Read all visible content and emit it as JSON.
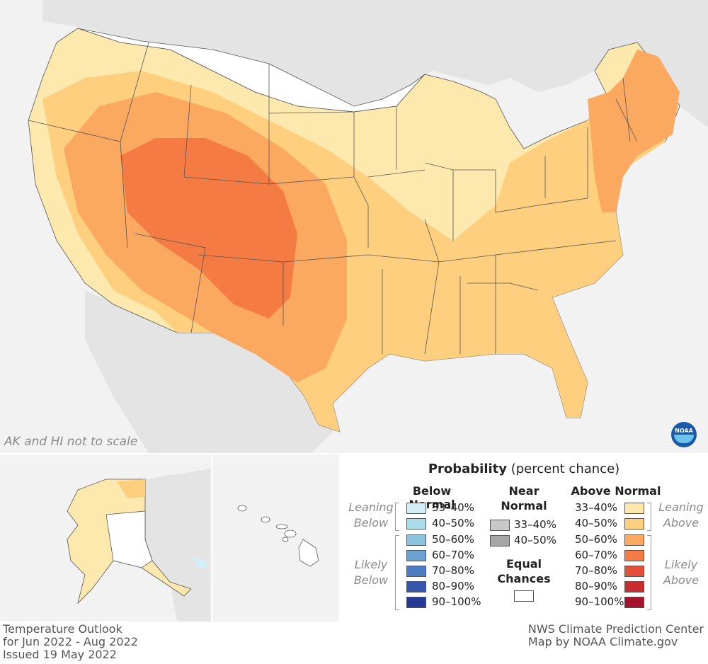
{
  "note": "AK and HI not to scale",
  "footer": {
    "line1": "Temperature Outlook",
    "line2": "for Jun 2022 - Aug 2022",
    "line3": "Issued 19 May 2022",
    "credit1": "NWS Climate Prediction Center",
    "credit2": "Map by NOAA Climate.gov"
  },
  "logo": "NOAA",
  "legend": {
    "title_bold": "Probability",
    "title_rest": " (percent chance)",
    "below_header": "Below Normal",
    "near_header_1": "Near",
    "near_header_2": "Normal",
    "above_header": "Above Normal",
    "equal_1": "Equal",
    "equal_2": "Chances",
    "leaning_below_1": "Leaning",
    "leaning_below_2": "Below",
    "likely_below_1": "Likely",
    "likely_below_2": "Below",
    "leaning_above_1": "Leaning",
    "leaning_above_2": "Above",
    "likely_above_1": "Likely",
    "likely_above_2": "Above",
    "below": [
      {
        "label": "33–40%",
        "color": "#d4eef7"
      },
      {
        "label": "40–50%",
        "color": "#acdcea"
      },
      {
        "label": "50–60%",
        "color": "#8cc3df"
      },
      {
        "label": "60–70%",
        "color": "#6aa1d0"
      },
      {
        "label": "70–80%",
        "color": "#4c7cc2"
      },
      {
        "label": "80–90%",
        "color": "#3656ab"
      },
      {
        "label": "90–100%",
        "color": "#243a94"
      }
    ],
    "near": [
      {
        "label": "33–40%",
        "color": "#c8c8c8"
      },
      {
        "label": "40–50%",
        "color": "#a6a6a6"
      }
    ],
    "equal_color": "#ffffff",
    "above": [
      {
        "label": "33–40%",
        "color": "#fde8ae"
      },
      {
        "label": "40–50%",
        "color": "#fdcf7e"
      },
      {
        "label": "50–60%",
        "color": "#fba860"
      },
      {
        "label": "60–70%",
        "color": "#f57b45"
      },
      {
        "label": "70–80%",
        "color": "#e2503a"
      },
      {
        "label": "80–90%",
        "color": "#ca2d30"
      },
      {
        "label": "90–100%",
        "color": "#a4122b"
      }
    ]
  },
  "colors": {
    "background_land": "#e4e4e4",
    "ocean": "#f2f2f2",
    "equal_chances": "#ffffff",
    "above_33": "#fde8ae",
    "above_40": "#fdcf7e",
    "above_50": "#fba860",
    "above_60": "#f57b45"
  }
}
